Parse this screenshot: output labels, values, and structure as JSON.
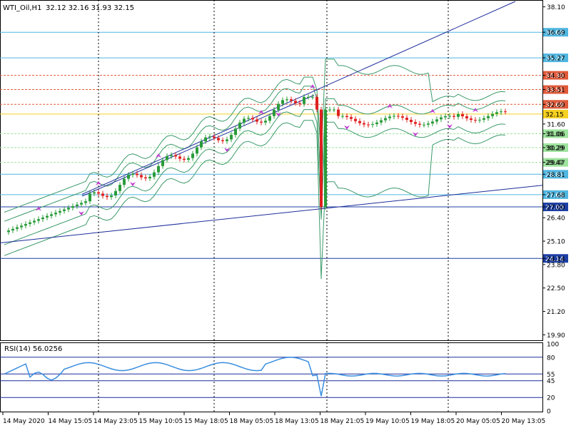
{
  "header": {
    "symbol_timeframe": "WTI_Oil,H1",
    "ohlc": "32.12 32.16 31.93 32.15"
  },
  "rsi_panel": {
    "label": "RSI(14) 56.0256",
    "axis": [
      "100",
      "80",
      "55",
      "45",
      "20",
      "0"
    ],
    "levels": [
      80,
      55,
      45,
      20
    ]
  },
  "price_axis": [
    "38.10",
    "36.69",
    "35.27",
    "34.30",
    "33.51",
    "32.69",
    "31.60",
    "31.06",
    "30.29",
    "29.47",
    "28.81",
    "27.68",
    "27.00",
    "26.40",
    "25.10",
    "24.14",
    "23.80",
    "22.50",
    "21.20",
    "19.90"
  ],
  "time_axis": [
    "14 May 2020",
    "14 May 15:05",
    "14 May 23:05",
    "15 May 10:05",
    "15 May 18:05",
    "18 May 05:05",
    "18 May 13:05",
    "18 May 21:05",
    "19 May 10:05",
    "19 May 18:05",
    "20 May 05:05",
    "20 May 13:05"
  ],
  "horizontal_levels": [
    {
      "label": "36.69",
      "price": 36.69,
      "style": "solid",
      "color": "#4fb6e0"
    },
    {
      "label": "35.27",
      "price": 35.27,
      "style": "solid",
      "color": "#4fb6e0"
    },
    {
      "label": "34.30",
      "price": 34.3,
      "style": "dashed",
      "color": "#e05a3a"
    },
    {
      "label": "33.51",
      "price": 33.51,
      "style": "dashed",
      "color": "#e05a3a"
    },
    {
      "label": "32.69",
      "price": 32.69,
      "style": "dashed",
      "color": "#e05a3a"
    },
    {
      "label": "32.15",
      "price": 32.15,
      "style": "solid",
      "color": "#f5d020"
    },
    {
      "label": "31.06",
      "price": 31.06,
      "style": "dashed",
      "color": "#9ee39e"
    },
    {
      "label": "30.29",
      "price": 30.29,
      "style": "dashed",
      "color": "#9ee39e"
    },
    {
      "label": "29.47",
      "price": 29.47,
      "style": "dashed",
      "color": "#9ee39e"
    },
    {
      "label": "28.81",
      "price": 28.81,
      "style": "solid",
      "color": "#4fb6e0"
    },
    {
      "label": "27.68",
      "price": 27.68,
      "style": "solid",
      "color": "#4fb6e0"
    },
    {
      "label": "27.00",
      "price": 27.0,
      "style": "solid",
      "color": "#1d3fa3"
    },
    {
      "label": "24.14",
      "price": 24.14,
      "style": "solid",
      "color": "#1d3fa3"
    }
  ],
  "colors": {
    "bull": "#2a9c3a",
    "bear": "#e02020",
    "trendline": "#1d2d9a",
    "band": "#3b9a6a",
    "rsi": "#3a8ee0",
    "marker": "#c040d0",
    "grid": "#000000",
    "axis_text": "#000000"
  }
}
